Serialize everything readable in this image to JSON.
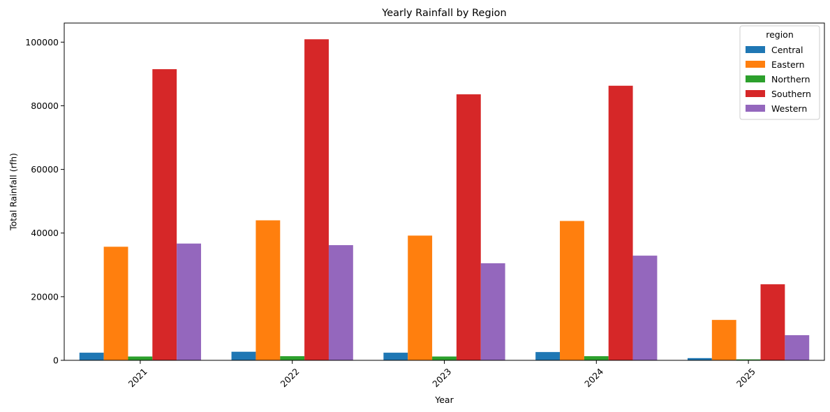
{
  "chart_data": {
    "type": "bar",
    "title": "Yearly Rainfall by Region",
    "xlabel": "Year",
    "ylabel": "Total Rainfall (rfh)",
    "categories": [
      "2021",
      "2022",
      "2023",
      "2024",
      "2025"
    ],
    "ylim": [
      0,
      106000
    ],
    "yticks": [
      0,
      20000,
      40000,
      60000,
      80000,
      100000
    ],
    "xtick_rotation_deg": 45,
    "grid": false,
    "legend": {
      "title": "region",
      "placement": "top-right"
    },
    "series": [
      {
        "name": "Central",
        "color": "#1f77b4",
        "values": [
          2400,
          2700,
          2400,
          2600,
          700
        ]
      },
      {
        "name": "Eastern",
        "color": "#ff7f0e",
        "values": [
          35700,
          44000,
          39200,
          43800,
          12700
        ]
      },
      {
        "name": "Northern",
        "color": "#2ca02c",
        "values": [
          1200,
          1300,
          1200,
          1300,
          300
        ]
      },
      {
        "name": "Southern",
        "color": "#d62728",
        "values": [
          91500,
          100900,
          83600,
          86300,
          23900
        ]
      },
      {
        "name": "Western",
        "color": "#9467bd",
        "values": [
          36700,
          36200,
          30500,
          32900,
          7900
        ]
      }
    ]
  }
}
